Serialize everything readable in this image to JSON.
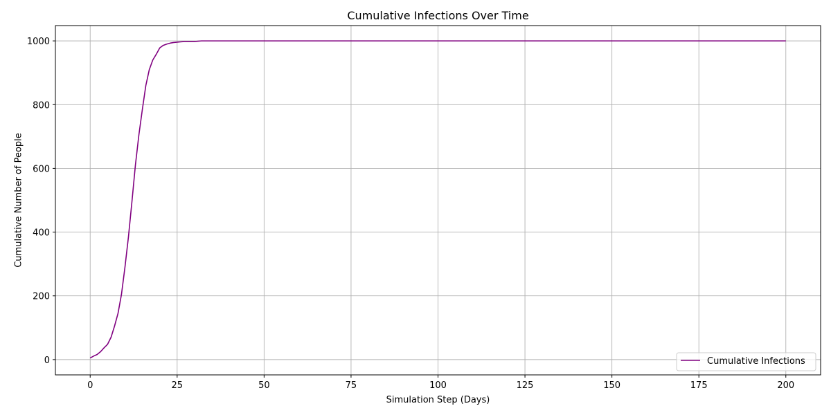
{
  "chart_data": {
    "type": "line",
    "title": "Cumulative Infections Over Time",
    "xlabel": "Simulation Step (Days)",
    "ylabel": "Cumulative Number of People",
    "xlim": [
      -10,
      210
    ],
    "ylim": [
      -48,
      1048
    ],
    "xticks": [
      0,
      25,
      50,
      75,
      100,
      125,
      150,
      175,
      200
    ],
    "yticks": [
      0,
      200,
      400,
      600,
      800,
      1000
    ],
    "grid": true,
    "legend_position": "lower-right",
    "series": [
      {
        "name": "Cumulative Infections",
        "color": "#800080",
        "x": [
          0,
          1,
          2,
          3,
          4,
          5,
          6,
          7,
          8,
          9,
          10,
          11,
          12,
          13,
          14,
          15,
          16,
          17,
          18,
          19,
          20,
          21,
          22,
          23,
          24,
          25,
          26,
          27,
          28,
          29,
          30,
          31,
          32,
          40,
          60,
          80,
          100,
          120,
          140,
          160,
          180,
          200
        ],
        "y": [
          5,
          11,
          16,
          25,
          37,
          48,
          70,
          105,
          145,
          205,
          290,
          385,
          495,
          610,
          705,
          785,
          860,
          910,
          940,
          958,
          978,
          986,
          990,
          993,
          995,
          996,
          997,
          998,
          998,
          998,
          998,
          999,
          1000,
          1000,
          1000,
          1000,
          1000,
          1000,
          1000,
          1000,
          1000,
          1000
        ]
      }
    ]
  }
}
